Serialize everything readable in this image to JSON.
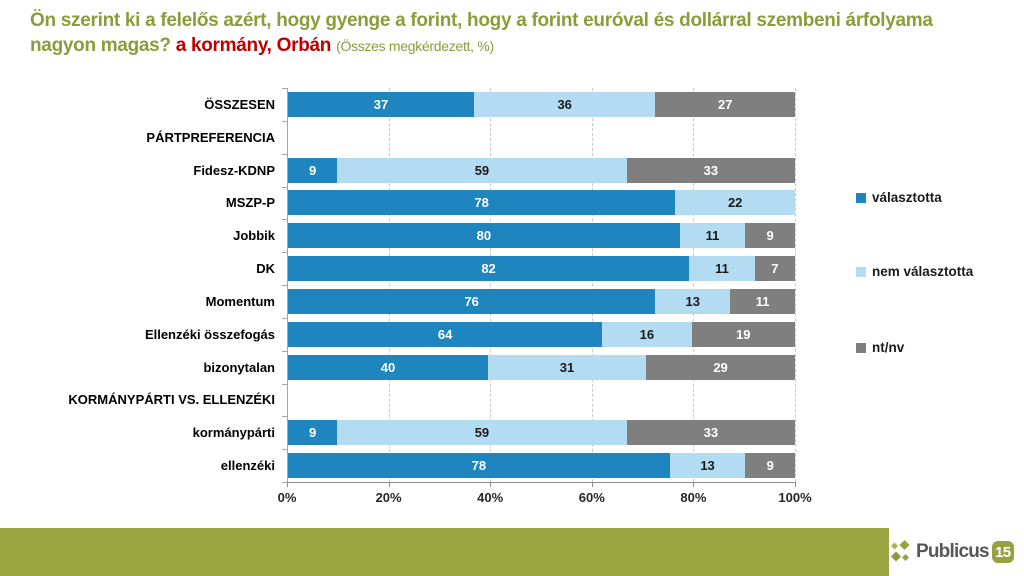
{
  "title": {
    "main": "Ön szerint ki a felelős azért, hogy gyenge a forint, hogy a forint euróval és dollárral szembeni árfolyama nagyon magas?",
    "highlight": "a kormány, Orbán",
    "suffix": "(Összes megkérdezett, %)"
  },
  "chart_data": {
    "type": "bar",
    "orientation": "horizontal",
    "stacked": true,
    "xlim": [
      0,
      100
    ],
    "x_ticks": [
      "0%",
      "20%",
      "40%",
      "60%",
      "80%",
      "100%"
    ],
    "grid": "vertical-dashed",
    "legend_position": "right",
    "series": [
      {
        "name": "választotta",
        "color": "#1F85BF",
        "label_color": "#ffffff"
      },
      {
        "name": "nem választotta",
        "color": "#B3DBF2",
        "label_color": "#1a1a1a"
      },
      {
        "name": "nt/nv",
        "color": "#7F7F7F",
        "label_color": "#ffffff"
      }
    ],
    "rows": [
      {
        "label": "ÖSSZESEN",
        "values": [
          37,
          36,
          27
        ]
      },
      {
        "label": "PÁRTPREFERENCIA",
        "header": true,
        "values": []
      },
      {
        "label": "Fidesz-KDNP",
        "values": [
          9,
          59,
          33
        ]
      },
      {
        "label": "MSZP-P",
        "values": [
          78,
          22,
          0
        ]
      },
      {
        "label": "Jobbik",
        "values": [
          80,
          11,
          9
        ]
      },
      {
        "label": "DK",
        "values": [
          82,
          11,
          7
        ]
      },
      {
        "label": "Momentum",
        "values": [
          76,
          13,
          11
        ]
      },
      {
        "label": "Ellenzéki összefogás",
        "values": [
          64,
          16,
          19
        ]
      },
      {
        "label": "bizonytalan",
        "values": [
          40,
          31,
          29
        ]
      },
      {
        "label": "KORMÁNYPÁRTI VS. ELLENZÉKI",
        "header": true,
        "values": []
      },
      {
        "label": "kormánypárti",
        "values": [
          9,
          59,
          33
        ]
      },
      {
        "label": "ellenzéki",
        "values": [
          78,
          13,
          9
        ]
      }
    ]
  },
  "footer": {
    "brand": "Publicus",
    "badge": "15"
  },
  "colors": {
    "title_green": "#8C9C3B",
    "highlight_red": "#C00000",
    "footer_band_olive": "#99A53F",
    "bar_dark_blue": "#1F85BF",
    "bar_light_blue": "#B3DBF2",
    "bar_gray": "#7F7F7F"
  }
}
